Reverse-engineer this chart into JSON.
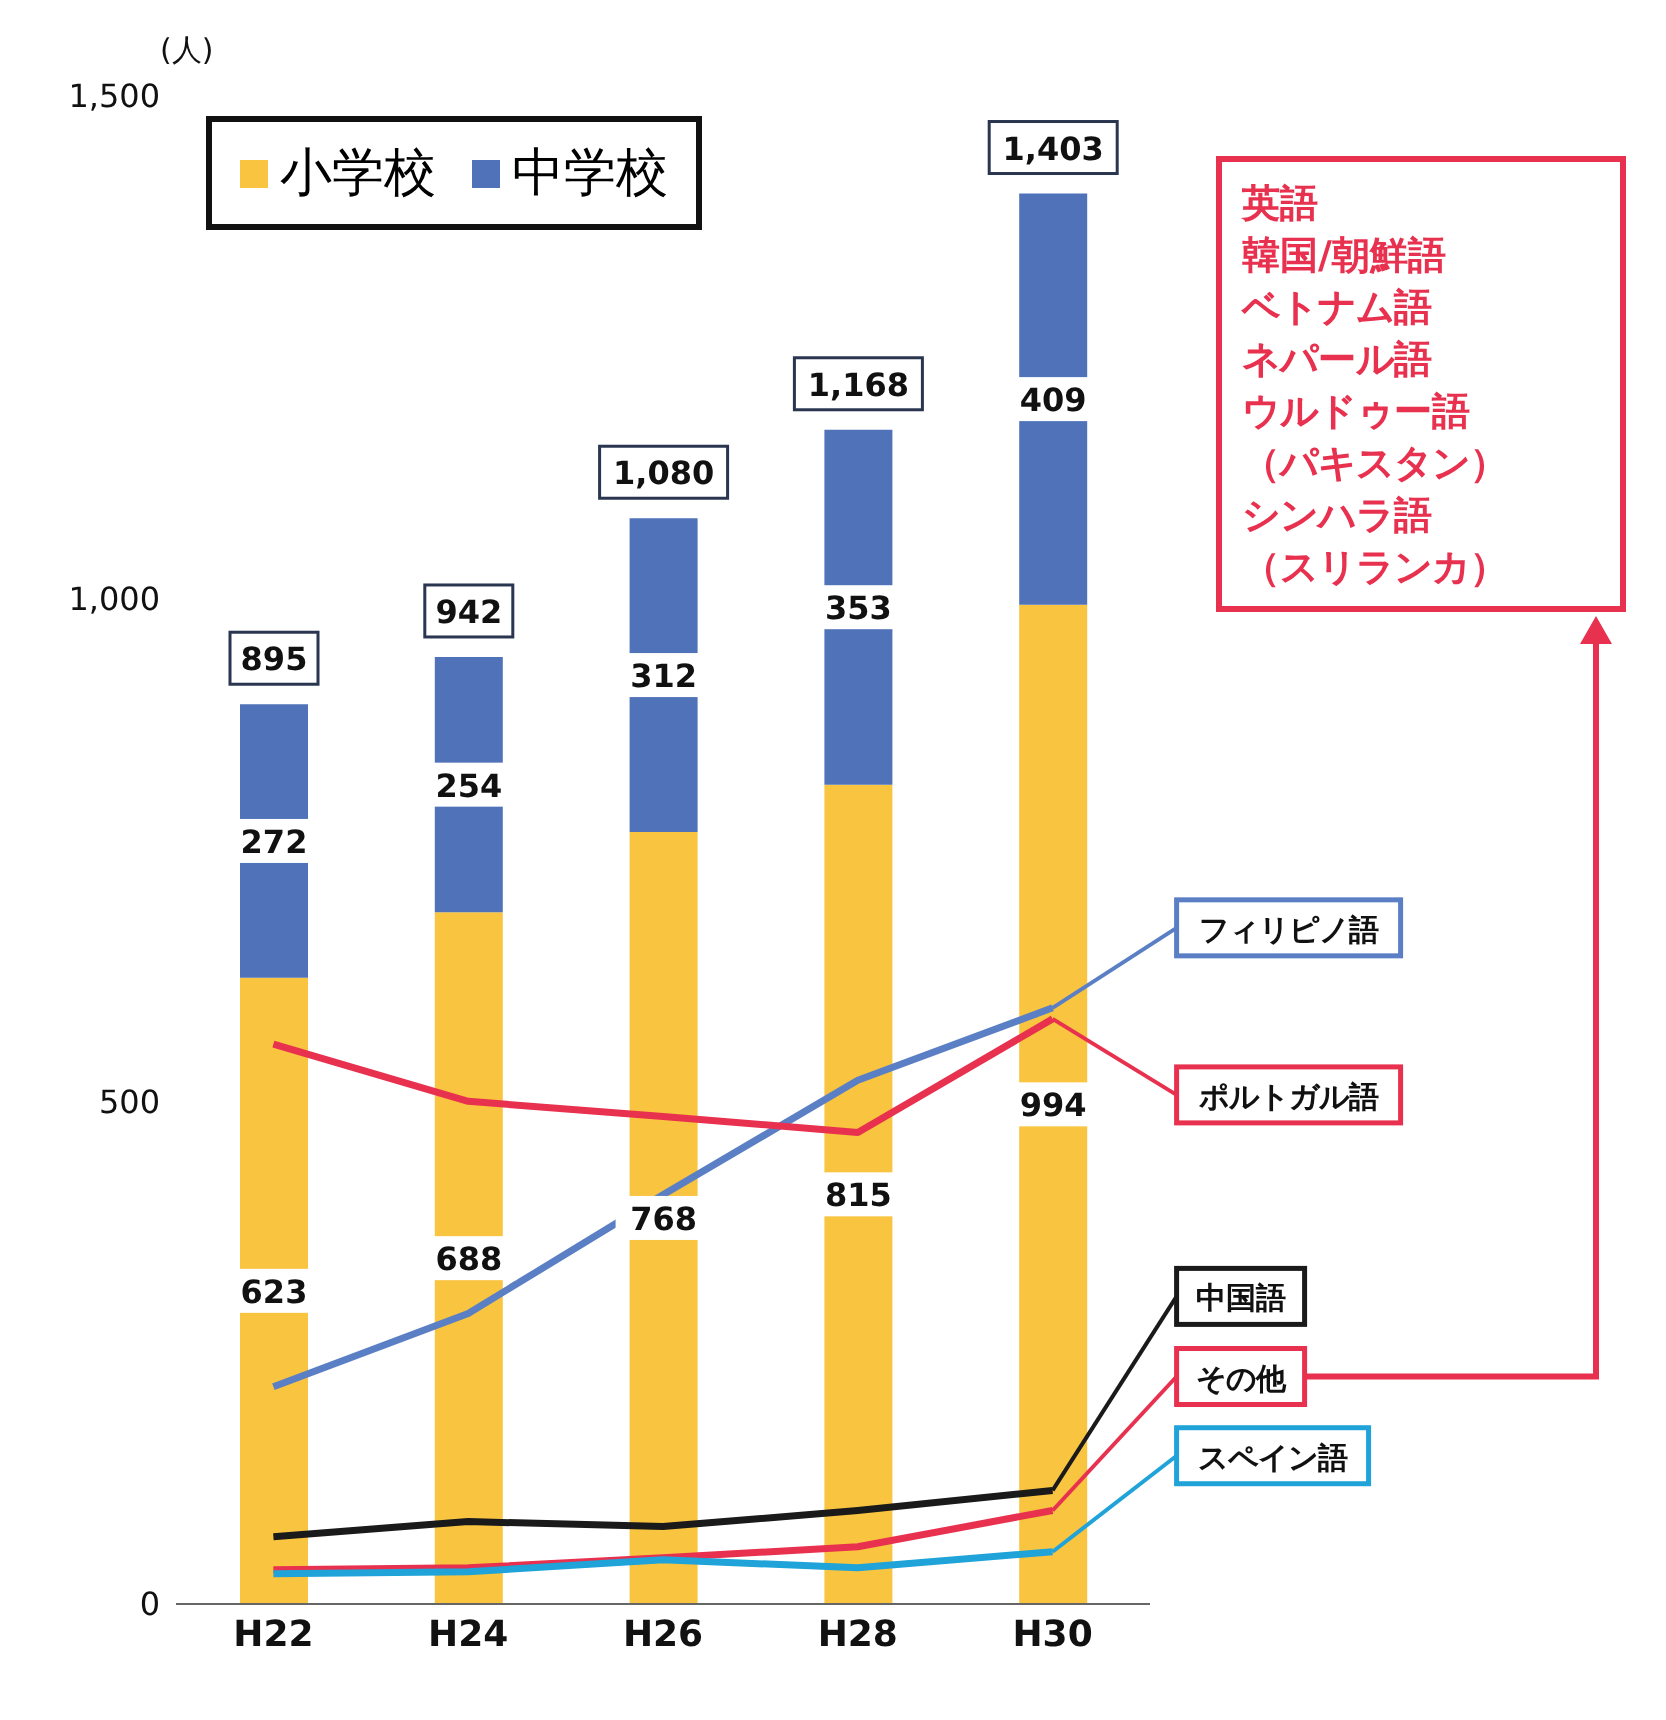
{
  "chart_data": {
    "type": "bar",
    "stacked": true,
    "ylabel": "(人)",
    "categories": [
      "H22",
      "H24",
      "H26",
      "H28",
      "H30"
    ],
    "series": [
      {
        "name": "小学校",
        "color": "#f9c440",
        "values": [
          623,
          688,
          768,
          815,
          994
        ],
        "value_labels": [
          "623",
          "688",
          "768",
          "815",
          "994"
        ]
      },
      {
        "name": "中学校",
        "color": "#4f72b8",
        "values": [
          272,
          254,
          312,
          353,
          409
        ],
        "value_labels": [
          "272",
          "254",
          "312",
          "353",
          "409"
        ]
      },
      {
        "name": "フィリピノ語",
        "type": "line",
        "color": "#5b7fc4",
        "values": [
          216,
          289,
          407,
          521,
          593
        ]
      },
      {
        "name": "ポルトガル語",
        "type": "line",
        "color": "#e8314f",
        "values": [
          557,
          500,
          485,
          469,
          582
        ]
      },
      {
        "name": "中国語",
        "type": "line",
        "color": "#1a1a1a",
        "values": [
          67,
          82,
          77,
          93,
          113
        ]
      },
      {
        "name": "その他",
        "type": "line",
        "color": "#e8314f",
        "values": [
          34,
          36,
          46,
          57,
          93
        ]
      },
      {
        "name": "スペイン語",
        "type": "line",
        "color": "#1fa3d8",
        "values": [
          30,
          32,
          44,
          36,
          52
        ]
      }
    ],
    "totals": [
      "895",
      "942",
      "1,080",
      "1,168",
      "1,403"
    ],
    "ylim": [
      0,
      1500
    ],
    "yticks": [
      0,
      500,
      {
        "value": 1000,
        "label": "1,000"
      },
      {
        "value": 1500,
        "label": "1,500"
      }
    ],
    "legend": "top left",
    "marker": "none",
    "line_style": "solid",
    "annotations": [
      "英語",
      "韓国/朝鮮語",
      "ベトナム語",
      "ネパール語",
      "ウルドゥー語",
      "（パキスタン）",
      "シンハラ語",
      "（スリランカ）"
    ]
  }
}
